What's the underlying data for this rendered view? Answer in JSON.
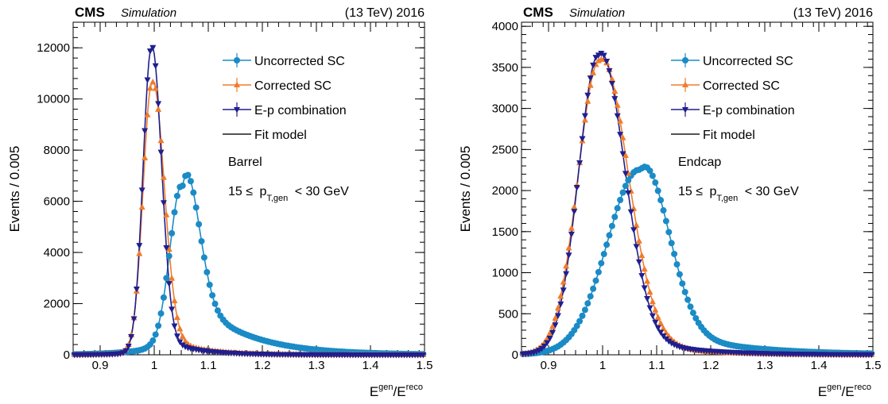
{
  "header": {
    "experiment": "CMS",
    "status": "Simulation",
    "energy_year": "(13 TeV) 2016"
  },
  "colors": {
    "uncorrected": "#1b8bc6",
    "corrected": "#f07c2c",
    "ep": "#1f1f8f",
    "fit": "#1a1a1a"
  },
  "chart_data": [
    {
      "type": "scatter",
      "panel": "left",
      "region_label": "Barrel",
      "cut_label": {
        "pre": "15 ≤ ",
        "var": "p",
        "sub": "T,gen",
        "post": " < 30 GeV"
      },
      "ylabel": "Events / 0.005",
      "xlabel": {
        "base1": "E",
        "sup1": "gen",
        "sep": "/E",
        "sup2": "reco"
      },
      "xlim": [
        0.85,
        1.5
      ],
      "ylim": [
        0,
        13000
      ],
      "xticks": [
        0.9,
        1.0,
        1.1,
        1.2,
        1.3,
        1.4,
        1.5
      ],
      "xtick_labels": [
        "0.9",
        "1",
        "1.1",
        "1.2",
        "1.3",
        "1.4",
        "1.5"
      ],
      "yticks": [
        0,
        2000,
        4000,
        6000,
        8000,
        10000,
        12000
      ],
      "ytick_labels": [
        "0",
        "2000",
        "4000",
        "6000",
        "8000",
        "10000",
        "12000"
      ],
      "legend_position": "top-right",
      "series": [
        {
          "name": "Uncorrected SC",
          "key": "uncorrected",
          "marker": "circle",
          "peak": 1.052,
          "amp": 6550,
          "sigL": 0.022,
          "sigR": 0.028,
          "tail": 0.42,
          "tailScale": 0.095
        },
        {
          "name": "Corrected SC",
          "key": "corrected",
          "marker": "triangle-up",
          "peak": 0.996,
          "amp": 10600,
          "sigL": 0.0165,
          "sigR": 0.0215,
          "tail": 0.095,
          "tailScale": 0.06
        },
        {
          "name": "E-p combination",
          "key": "ep",
          "marker": "triangle-down",
          "peak": 0.995,
          "amp": 12000,
          "sigL": 0.0155,
          "sigR": 0.018,
          "tail": 0.07,
          "tailScale": 0.06
        }
      ],
      "fit_label": "Fit model"
    },
    {
      "type": "scatter",
      "panel": "right",
      "region_label": "Endcap",
      "cut_label": {
        "pre": "15 ≤ ",
        "var": "p",
        "sub": "T,gen",
        "post": " < 30 GeV"
      },
      "ylabel": "Events / 0.005",
      "xlabel": {
        "base1": "E",
        "sup1": "gen",
        "sep": "/E",
        "sup2": "reco"
      },
      "xlim": [
        0.85,
        1.5
      ],
      "ylim": [
        0,
        4050
      ],
      "xticks": [
        0.9,
        1.0,
        1.1,
        1.2,
        1.3,
        1.4,
        1.5
      ],
      "xtick_labels": [
        "0.9",
        "1",
        "1.1",
        "1.2",
        "1.3",
        "1.4",
        "1.5"
      ],
      "yticks": [
        0,
        500,
        1000,
        1500,
        2000,
        2500,
        3000,
        3500,
        4000
      ],
      "ytick_labels": [
        "0",
        "500",
        "1000",
        "1500",
        "2000",
        "2500",
        "3000",
        "3500",
        "4000"
      ],
      "legend_position": "top-right",
      "series": [
        {
          "name": "Uncorrected SC",
          "key": "uncorrected",
          "marker": "circle",
          "peak": 1.07,
          "amp": 2250,
          "sigL": 0.06,
          "sigR": 0.05,
          "tail": 0.18,
          "tailScale": 0.13
        },
        {
          "name": "Corrected SC",
          "key": "corrected",
          "marker": "triangle-up",
          "peak": 0.995,
          "amp": 3580,
          "sigL": 0.04,
          "sigR": 0.05,
          "tail": 0.1,
          "tailScale": 0.09
        },
        {
          "name": "E-p combination",
          "key": "ep",
          "marker": "triangle-down",
          "peak": 0.993,
          "amp": 3650,
          "sigL": 0.037,
          "sigR": 0.046,
          "tail": 0.1,
          "tailScale": 0.1
        }
      ],
      "fit_label": "Fit model"
    }
  ]
}
